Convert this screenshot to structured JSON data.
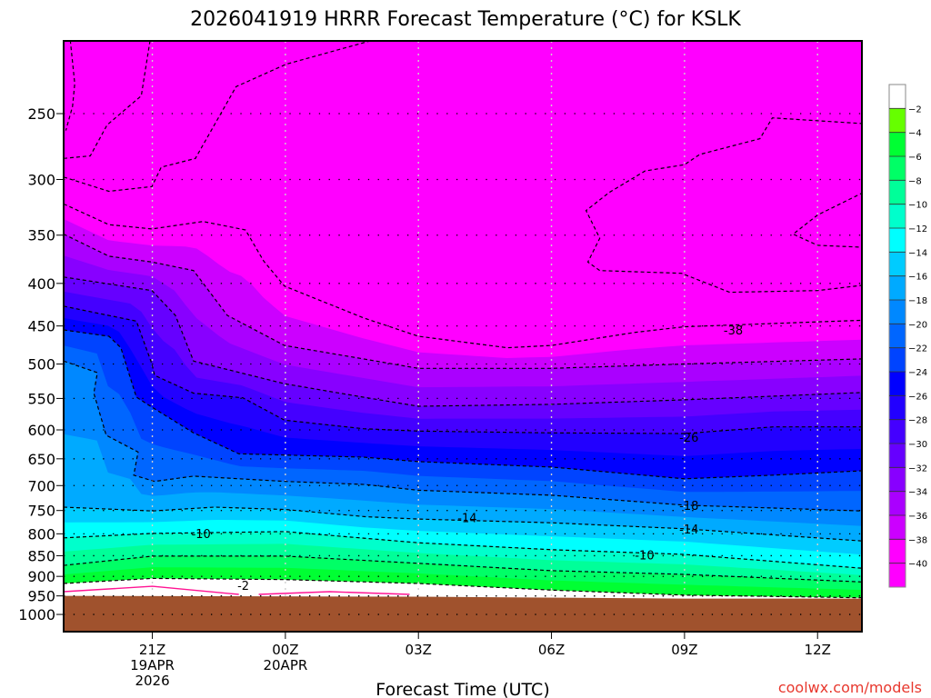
{
  "chart_data": {
    "type": "heatmap",
    "subtype": "time-height contour cross-section",
    "title": "2026041919 HRRR Forecast Temperature (°C) for KSLK",
    "xlabel": "Forecast Time (UTC)",
    "ylabel": "",
    "x_units": "hours after 19Z 19APR2026",
    "xlim": [
      0,
      18
    ],
    "ylim_hPa": [
      1048,
      204
    ],
    "y_scale": "log-pressure",
    "y_ticks": [
      250,
      300,
      350,
      400,
      450,
      500,
      550,
      600,
      650,
      700,
      750,
      800,
      850,
      900,
      950,
      1000
    ],
    "x_ticks": [
      {
        "hour": 2,
        "lines": [
          "21Z",
          "19APR",
          "2026"
        ]
      },
      {
        "hour": 5,
        "lines": [
          "00Z",
          "20APR"
        ]
      },
      {
        "hour": 8,
        "lines": [
          "03Z"
        ]
      },
      {
        "hour": 11,
        "lines": [
          "06Z"
        ]
      },
      {
        "hour": 14,
        "lines": [
          "09Z"
        ]
      },
      {
        "hour": 17,
        "lines": [
          "12Z"
        ]
      }
    ],
    "grid": true,
    "colorbar": {
      "position": "right",
      "tick_labels": [
        "-2",
        "-4",
        "-6",
        "-8",
        "-10",
        "-12",
        "-14",
        "-16",
        "-18",
        "-20",
        "-22",
        "-24",
        "-26",
        "-28",
        "-30",
        "-32",
        "-34",
        "-36",
        "-38",
        "-40"
      ],
      "colors": [
        "#ffffff",
        "#66ff00",
        "#00ff33",
        "#00ff66",
        "#00ff99",
        "#00ffcc",
        "#00ffff",
        "#00ccff",
        "#00aaff",
        "#0088ff",
        "#0066ff",
        "#0044ff",
        "#0000ff",
        "#2200ff",
        "#4400ff",
        "#6600ff",
        "#8800ff",
        "#aa00ff",
        "#cc00ff",
        "#ff00ff",
        "#ff00ff"
      ]
    },
    "isotherms_hPa": [
      {
        "temp": -2,
        "points": [
          [
            0,
            918
          ],
          [
            2,
            905
          ],
          [
            5,
            908
          ],
          [
            8,
            918
          ],
          [
            11,
            935
          ],
          [
            14,
            948
          ],
          [
            18,
            955
          ]
        ]
      },
      {
        "temp": -6,
        "points": [
          [
            0,
            873
          ],
          [
            2,
            851
          ],
          [
            5,
            851
          ],
          [
            8,
            868
          ],
          [
            11,
            886
          ],
          [
            14,
            895
          ],
          [
            18,
            914
          ]
        ]
      },
      {
        "temp": -10,
        "points": [
          [
            0,
            809
          ],
          [
            2,
            799
          ],
          [
            5,
            795
          ],
          [
            8,
            820
          ],
          [
            11,
            836
          ],
          [
            14,
            847
          ],
          [
            18,
            880
          ]
        ]
      },
      {
        "temp": -14,
        "points": [
          [
            0,
            743
          ],
          [
            2,
            751
          ],
          [
            3.4,
            743
          ],
          [
            5,
            748
          ],
          [
            6.8,
            763
          ],
          [
            8,
            768
          ],
          [
            11,
            776
          ],
          [
            14,
            789
          ],
          [
            18,
            816
          ]
        ]
      },
      {
        "temp": -18,
        "points": [
          [
            0,
            496
          ],
          [
            0.76,
            512
          ],
          [
            0.68,
            542
          ],
          [
            0.96,
            609
          ],
          [
            1.68,
            638
          ],
          [
            1.58,
            680
          ],
          [
            2.05,
            692
          ],
          [
            2.93,
            682
          ],
          [
            5,
            692
          ],
          [
            6.8,
            698
          ],
          [
            8,
            709
          ],
          [
            11,
            719
          ],
          [
            14,
            739
          ],
          [
            18,
            751
          ]
        ]
      },
      {
        "temp": -22,
        "points": [
          [
            0,
            455
          ],
          [
            1.02,
            463
          ],
          [
            1.29,
            478
          ],
          [
            1.64,
            548
          ],
          [
            2.05,
            566
          ],
          [
            2.93,
            605
          ],
          [
            3.95,
            641
          ],
          [
            6.76,
            647
          ],
          [
            8,
            655
          ],
          [
            11,
            665
          ],
          [
            14,
            687
          ],
          [
            16,
            680
          ],
          [
            18,
            672
          ]
        ]
      },
      {
        "temp": -26,
        "points": [
          [
            0,
            426
          ],
          [
            1.64,
            444
          ],
          [
            1.99,
            500
          ],
          [
            2.05,
            516
          ],
          [
            2.93,
            542
          ],
          [
            4.04,
            549
          ],
          [
            4.98,
            584
          ],
          [
            6.76,
            598
          ],
          [
            8,
            602
          ],
          [
            11,
            605
          ],
          [
            14,
            606
          ],
          [
            16,
            595
          ],
          [
            18,
            595
          ]
        ]
      },
      {
        "temp": -30,
        "points": [
          [
            0,
            393
          ],
          [
            1.99,
            408
          ],
          [
            2.52,
            437
          ],
          [
            2.93,
            496
          ],
          [
            4.98,
            528
          ],
          [
            6.76,
            548
          ],
          [
            8,
            562
          ],
          [
            11,
            559
          ],
          [
            14,
            552
          ],
          [
            18,
            541
          ]
        ]
      },
      {
        "temp": -34,
        "points": [
          [
            0,
            349
          ],
          [
            1.02,
            371
          ],
          [
            1.99,
            377
          ],
          [
            2.93,
            386
          ],
          [
            3.69,
            437
          ],
          [
            4.98,
            475
          ],
          [
            6.76,
            493
          ],
          [
            8,
            506
          ],
          [
            11,
            506
          ],
          [
            14,
            500
          ],
          [
            18,
            493
          ]
        ]
      },
      {
        "temp": -38,
        "points": [
          [
            0,
            321
          ],
          [
            1.02,
            340
          ],
          [
            1.99,
            344
          ],
          [
            3.14,
            337
          ],
          [
            4.1,
            345
          ],
          [
            4.51,
            376
          ],
          [
            4.98,
            403
          ],
          [
            6.76,
            440
          ],
          [
            8,
            463
          ],
          [
            10,
            478
          ],
          [
            11,
            475
          ],
          [
            12.9,
            458
          ],
          [
            14,
            451
          ],
          [
            18,
            443
          ]
        ]
      }
    ],
    "upper_contours_hPa": [
      [
        [
          0,
          298
        ],
        [
          1.02,
          310
        ],
        [
          1.99,
          306
        ],
        [
          2.2,
          290
        ],
        [
          2.97,
          283
        ],
        [
          3.89,
          232
        ],
        [
          5.02,
          218
        ],
        [
          6.97,
          204
        ]
      ],
      [
        [
          0,
          283
        ],
        [
          0.6,
          281
        ],
        [
          0.98,
          258
        ],
        [
          1.75,
          238
        ],
        [
          1.95,
          204
        ]
      ],
      [
        [
          0.15,
          204
        ],
        [
          0.25,
          230
        ],
        [
          0.2,
          245
        ],
        [
          0.05,
          262
        ]
      ],
      [
        [
          18.03,
          257
        ],
        [
          15.98,
          253
        ],
        [
          15.7,
          268
        ],
        [
          14.34,
          280
        ],
        [
          14,
          288
        ],
        [
          13.11,
          293
        ],
        [
          12.3,
          311
        ],
        [
          11.78,
          327
        ],
        [
          12.09,
          353
        ],
        [
          11.82,
          377
        ],
        [
          12.09,
          386
        ],
        [
          13.93,
          389
        ],
        [
          15.02,
          410
        ],
        [
          17.0,
          408
        ],
        [
          18.03,
          402
        ]
      ],
      [
        [
          18.03,
          311
        ],
        [
          17.0,
          331
        ],
        [
          16.45,
          349
        ],
        [
          17.0,
          360
        ],
        [
          18.03,
          362
        ]
      ]
    ],
    "freezing_line_hPa": [
      [
        [
          0,
          939
        ],
        [
          2,
          925
        ],
        [
          3.95,
          946
        ]
      ],
      [
        [
          4.4,
          946
        ],
        [
          6,
          939
        ],
        [
          7.8,
          946
        ]
      ]
    ],
    "surface_pressure_hPa": [
      [
        0,
        950
      ],
      [
        8,
        952
      ],
      [
        14,
        957
      ],
      [
        18,
        957
      ]
    ],
    "contour_labels": [
      {
        "text": "-38",
        "hour": 15.1,
        "p": 455
      },
      {
        "text": "-26",
        "hour": 14.1,
        "p": 612
      },
      {
        "text": "-18",
        "hour": 14.1,
        "p": 739
      },
      {
        "text": "-14",
        "hour": 9.1,
        "p": 765
      },
      {
        "text": "-14",
        "hour": 14.1,
        "p": 789
      },
      {
        "text": "-10",
        "hour": 3.1,
        "p": 799
      },
      {
        "text": "-10",
        "hour": 13.1,
        "p": 848
      },
      {
        "text": "-2",
        "hour": 4.05,
        "p": 923
      }
    ],
    "colors": {
      "ground": "#a0522d",
      "freezing_line": "#ff1493",
      "background": "#ff00ff"
    }
  },
  "credit": "coolwx.com/models"
}
